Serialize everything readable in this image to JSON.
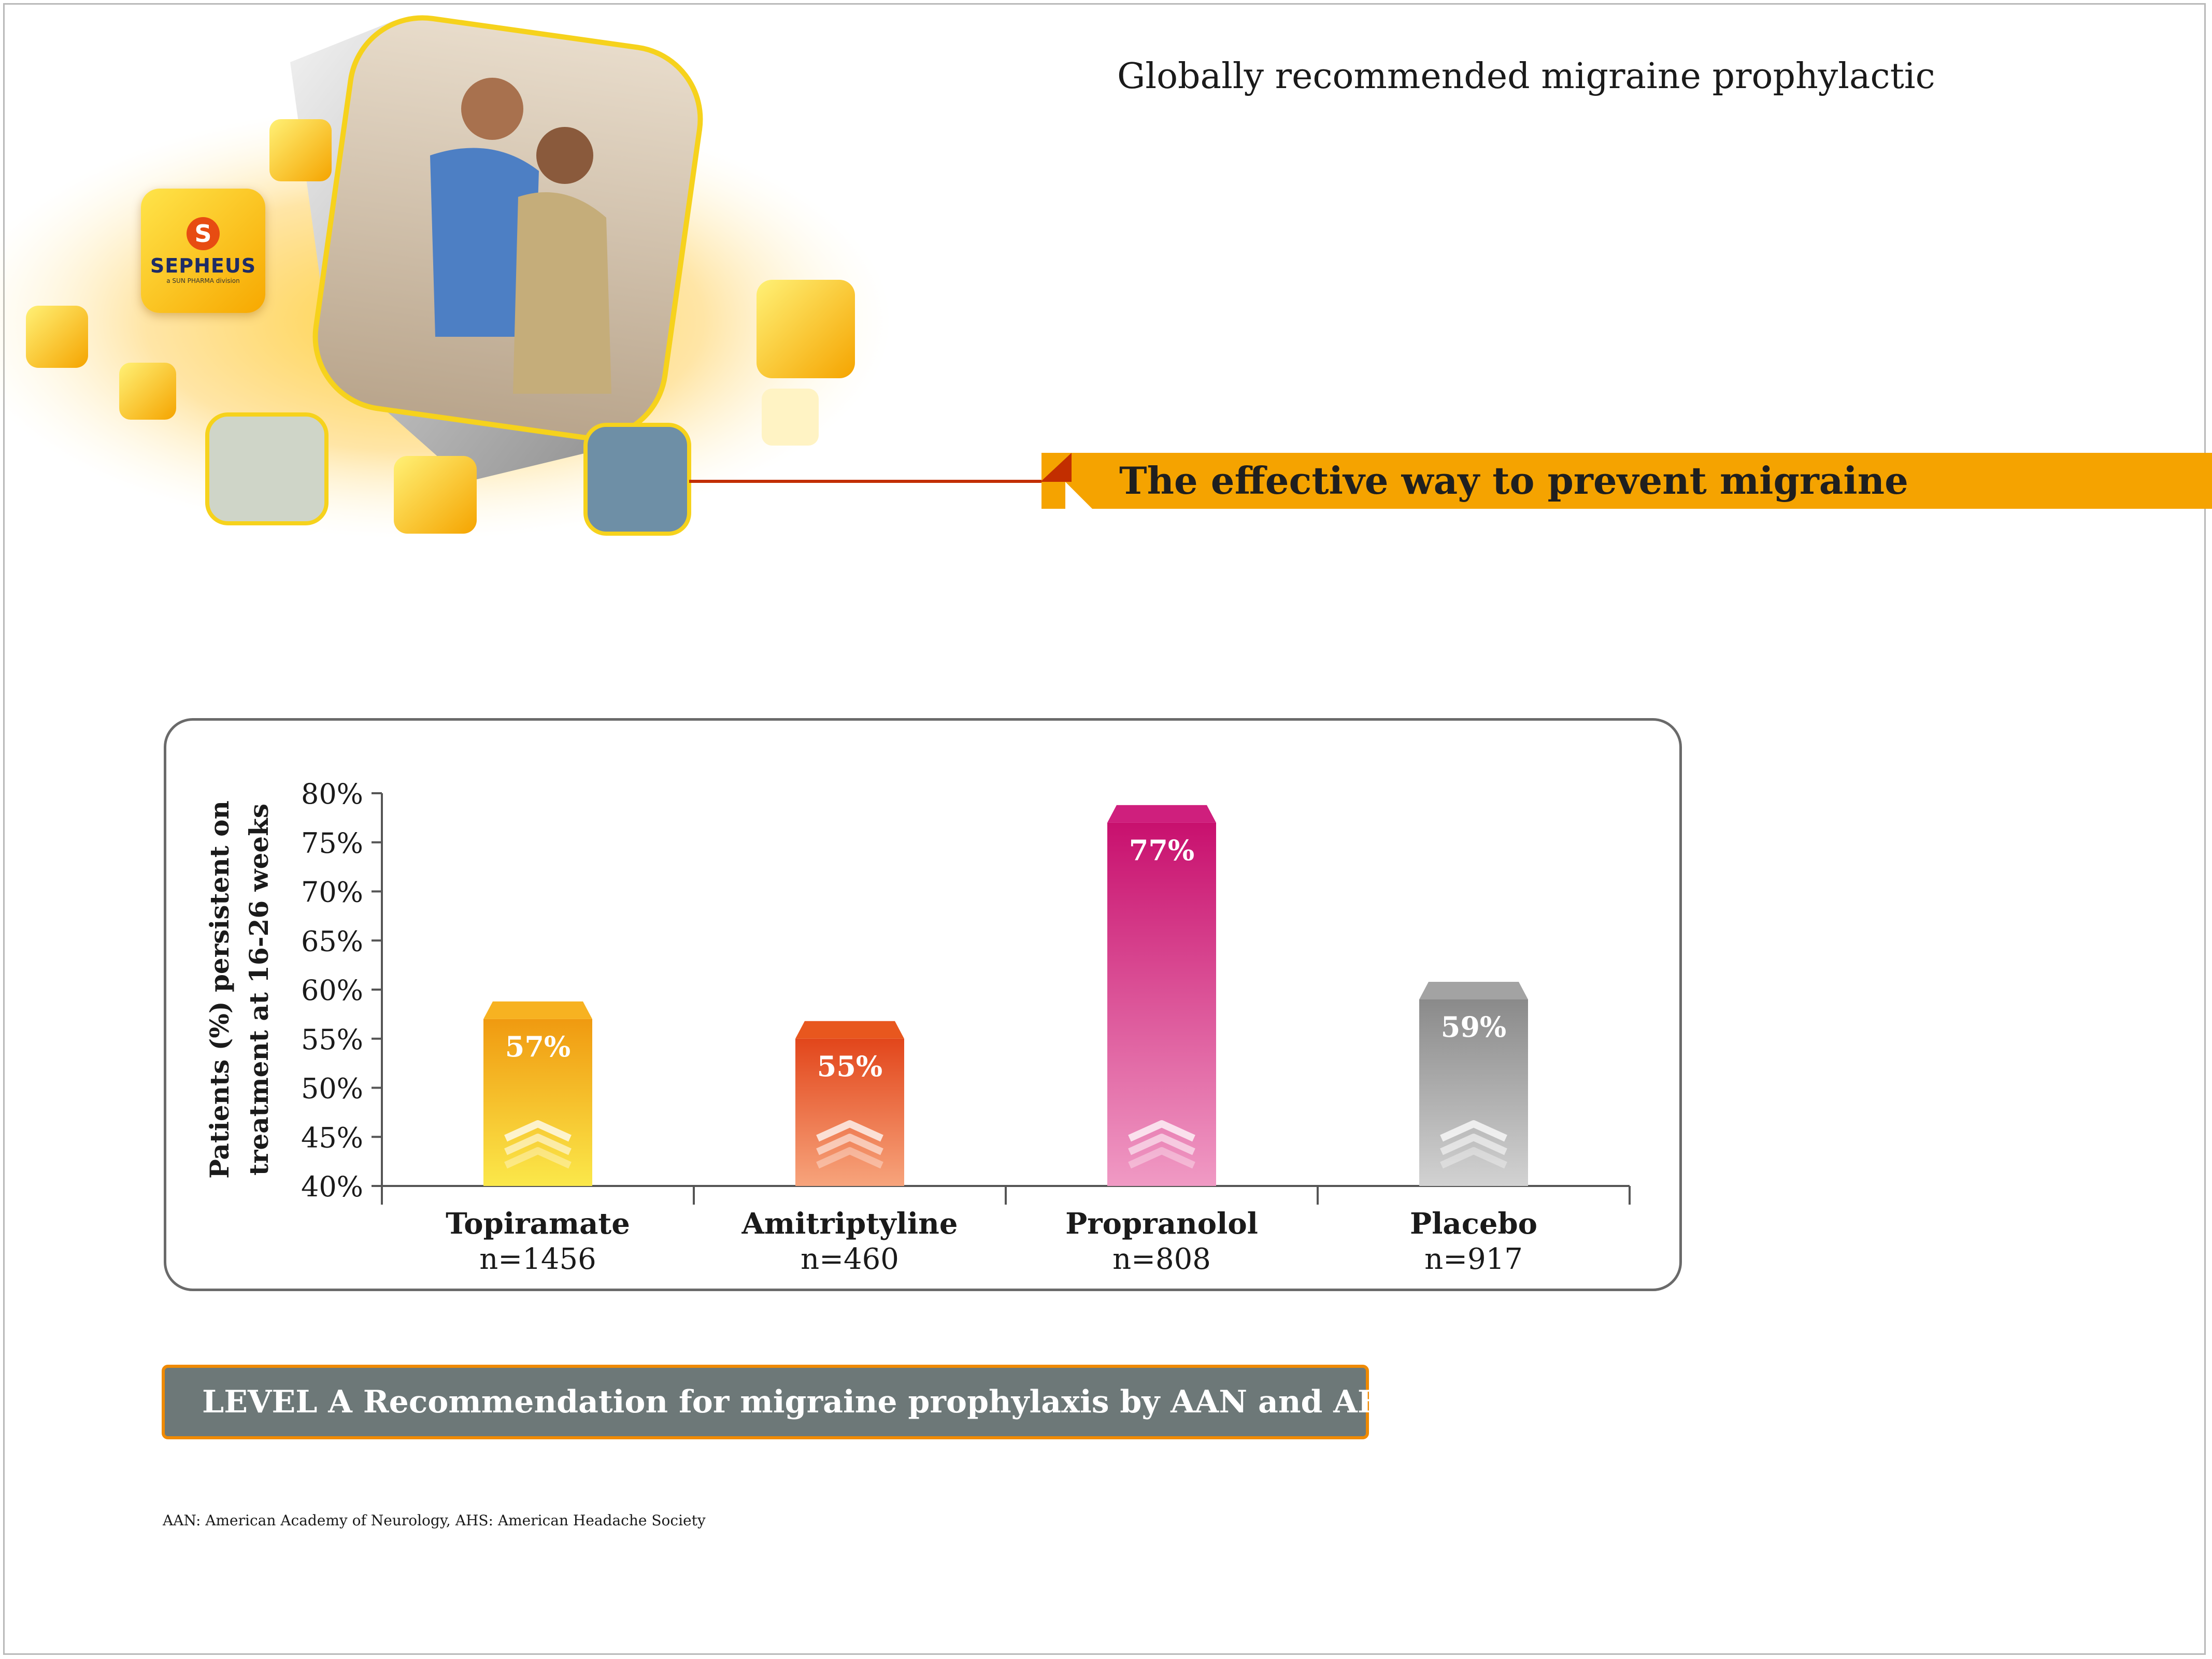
{
  "header": {
    "subtitle": "Globally recommended migraine prophylactic",
    "banner_title": "The effective way to prevent migraine"
  },
  "brand": {
    "name": "SEPHEUS",
    "tagline": "a SUN PHARMA division",
    "mark": "S"
  },
  "chart_data": {
    "type": "bar",
    "title": "",
    "ylabel": "Patients (%) persistent on treatment at 16-26 weeks",
    "ylabel_lines": [
      "Patients (%) persistent on",
      "treatment at 16-26 weeks"
    ],
    "xlabel": "",
    "ylim": [
      40,
      80
    ],
    "yticks": [
      "40%",
      "45%",
      "50%",
      "55%",
      "60%",
      "65%",
      "70%",
      "75%",
      "80%"
    ],
    "categories": [
      "Topiramate",
      "Amitriptyline",
      "Propranolol",
      "Placebo"
    ],
    "sample_sizes": [
      "n=1456",
      "n=460",
      "n=808",
      "n=917"
    ],
    "values": [
      57,
      55,
      77,
      59
    ],
    "data_labels": [
      "57%",
      "55%",
      "77%",
      "59%"
    ],
    "colors": [
      {
        "top": "#f09a10",
        "bottom": "#fbe84a",
        "cap": "#f7b221"
      },
      {
        "top": "#e2461b",
        "bottom": "#f7a47c",
        "cap": "#e8571e"
      },
      {
        "top": "#c8106e",
        "bottom": "#f09ac4",
        "cap": "#cf1f7d"
      },
      {
        "top": "#8a8a8a",
        "bottom": "#d2d2d2",
        "cap": "#a3a3a3"
      }
    ],
    "grid": false,
    "legend": "none"
  },
  "recommendation": {
    "text": "LEVEL A Recommendation for migraine prophylaxis by AAN and AHS"
  },
  "footnote": {
    "text": "AAN: American Academy of Neurology, AHS: American Headache Society"
  },
  "icons": {
    "chevron": "double-chevron-up-icon"
  }
}
